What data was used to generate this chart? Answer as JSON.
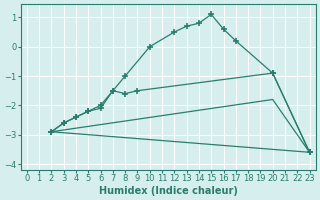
{
  "xlabel": "Humidex (Indice chaleur)",
  "ylabel": "",
  "bg_color": "#d6eeee",
  "grid_color": "#ffffff",
  "line_color": "#2a7d6e",
  "xlim": [
    -0.5,
    23.5
  ],
  "ylim": [
    -4.2,
    1.45
  ],
  "xticks": [
    0,
    1,
    2,
    3,
    4,
    5,
    6,
    7,
    8,
    9,
    10,
    11,
    12,
    13,
    14,
    15,
    16,
    17,
    18,
    19,
    20,
    21,
    22,
    23
  ],
  "yticks": [
    -4,
    -3,
    -2,
    -1,
    0,
    1
  ],
  "lines": [
    {
      "x": [
        2,
        3,
        4,
        5,
        6,
        7,
        8,
        10,
        12,
        13,
        14,
        15,
        16,
        17,
        20,
        23
      ],
      "y": [
        -2.9,
        -2.6,
        -2.4,
        -2.2,
        -2.0,
        -1.5,
        -1.0,
        0.0,
        0.5,
        0.7,
        0.8,
        1.1,
        0.6,
        0.2,
        -0.9,
        -3.6
      ]
    },
    {
      "x": [
        2,
        3,
        4,
        5,
        6,
        7,
        8,
        9,
        20,
        23
      ],
      "y": [
        -2.9,
        -2.6,
        -2.4,
        -2.2,
        -2.1,
        -1.5,
        -1.6,
        -1.5,
        -0.9,
        -3.6
      ]
    },
    {
      "x": [
        2,
        20,
        23
      ],
      "y": [
        -2.9,
        -1.8,
        -3.6
      ]
    },
    {
      "x": [
        2,
        23
      ],
      "y": [
        -2.9,
        -3.6
      ]
    }
  ]
}
